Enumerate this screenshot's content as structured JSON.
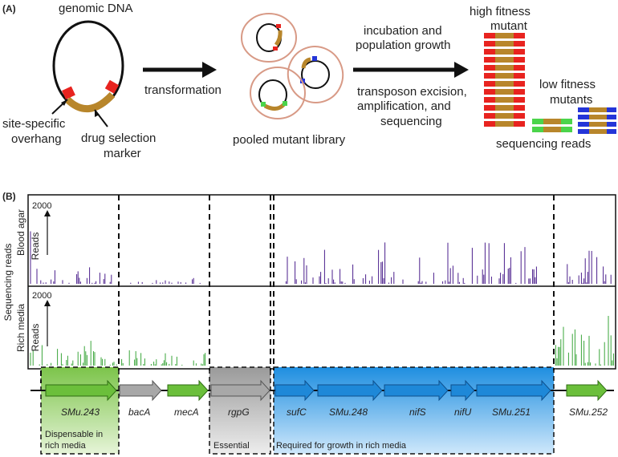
{
  "panel_a": {
    "label": "(A)",
    "genomic_dna": "genomic DNA",
    "overhang_line1": "site-specific",
    "overhang_line2": "overhang",
    "marker_line1": "drug selection",
    "marker_line2": "marker",
    "transformation": "transformation",
    "library": "pooled mutant library",
    "step1_line1": "incubation and",
    "step1_line2": "population growth",
    "step2_line1": "transposon excision,",
    "step2_line2": "amplification, and",
    "step2_line3": "sequencing",
    "high_line1": "high fitness",
    "high_line2": "mutant",
    "low_line1": "low fitness",
    "low_line2": "mutants",
    "reads": "sequencing reads"
  },
  "panel_b": {
    "label": "(B)",
    "y_outer": "Sequencing reads",
    "track1_label": "Blood agar",
    "track2_label": "Rich media",
    "reads_label": "Reads",
    "scale_value": "2000",
    "genes": [
      "SMu.243",
      "bacA",
      "mecA",
      "rgpG",
      "sufC",
      "SMu.248",
      "nifS",
      "nifU",
      "SMu.251",
      "SMu.252"
    ],
    "region_dispensable_line1": "Dispensable in",
    "region_dispensable_line2": "rich media",
    "region_essential": "Essential",
    "region_required": "Required for growth in rich media"
  },
  "colors": {
    "track1": "#4b1f8c",
    "track2": "#3aa63a",
    "green_gene": "#6bbf3b",
    "gray_gene": "#a8a8a8",
    "blue_gene": "#1e88d8",
    "red_overhang": "#e8231f",
    "marker": "#b8862b"
  }
}
